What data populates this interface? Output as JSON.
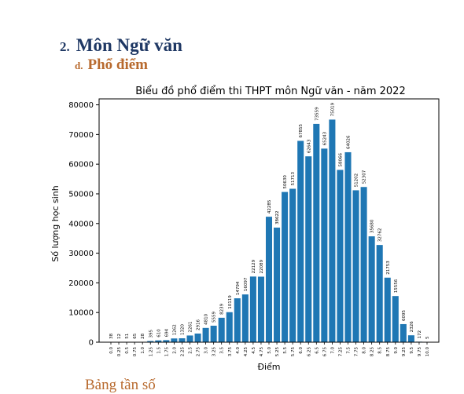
{
  "heading": {
    "number": "2.",
    "text": "Môn Ngữ văn"
  },
  "subheading": {
    "letter": "d.",
    "text": "Phổ điểm"
  },
  "footer_partial": "Bảng tần số",
  "colors": {
    "bar": "#1f77b4",
    "heading": "#1f3864",
    "subheading": "#b86a2e"
  },
  "chart_data": {
    "type": "bar",
    "title": "Biểu đồ phổ điểm thi THPT môn Ngữ văn - năm 2022",
    "xlabel": "Điểm",
    "ylabel": "Số lượng học sinh",
    "ylim": [
      0,
      82000
    ],
    "yticks": [
      "0",
      "10000",
      "20000",
      "30000",
      "40000",
      "50000",
      "60000",
      "70000",
      "80000"
    ],
    "grid": false,
    "categories": [
      "0.0",
      "0.25",
      "0.5",
      "0.75",
      "1.0",
      "1.25",
      "1.5",
      "1.75",
      "2.0",
      "2.25",
      "2.5",
      "2.75",
      "3.0",
      "3.25",
      "3.5",
      "3.75",
      "4.0",
      "4.25",
      "4.5",
      "4.75",
      "5.0",
      "5.25",
      "5.5",
      "5.75",
      "6.0",
      "6.25",
      "6.5",
      "6.75",
      "7.0",
      "7.25",
      "7.5",
      "7.75",
      "8.0",
      "8.25",
      "8.5",
      "8.75",
      "9.0",
      "9.25",
      "9.5",
      "9.75",
      "10.0"
    ],
    "values": [
      38,
      12,
      51,
      65,
      28,
      395,
      610,
      694,
      1262,
      1320,
      2261,
      2916,
      4810,
      5559,
      8239,
      10119,
      14794,
      16097,
      22129,
      22089,
      42285,
      38622,
      50630,
      51713,
      67855,
      62643,
      73559,
      65243,
      75019,
      58066,
      64026,
      51202,
      52307,
      35680,
      32762,
      21753,
      15556,
      6095,
      2326,
      172,
      5
    ]
  }
}
